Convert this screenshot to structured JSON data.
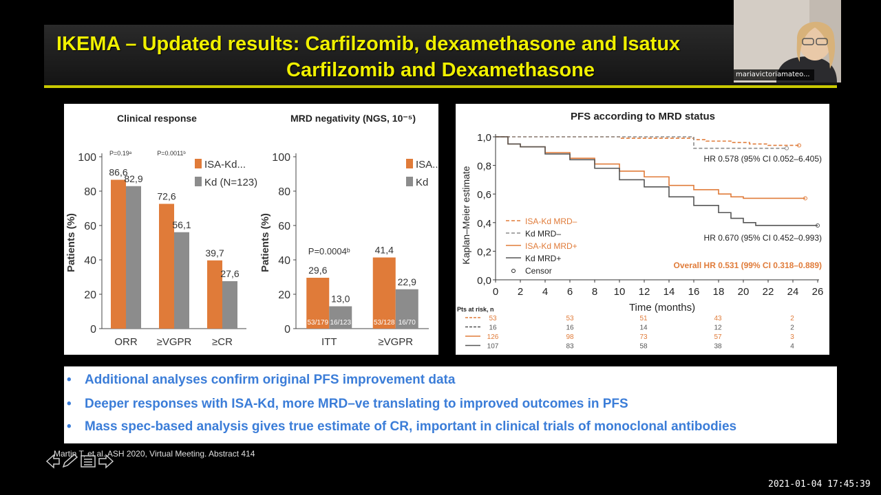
{
  "slide": {
    "title_line1": "IKEMA – Updated results: Carfilzomib, dexamethasone and Isatux",
    "title_line2": "Carfilzomib and Dexamethasone"
  },
  "colors": {
    "isa": "#e07b39",
    "kd": "#8c8c8c",
    "title": "#f0f000",
    "bullet": "#3b7dd8"
  },
  "chart_data": [
    {
      "type": "bar",
      "title": "Clinical response",
      "ylabel": "Patients (%)",
      "ylim": [
        0,
        100
      ],
      "yticks": [
        "0",
        "20",
        "40",
        "60",
        "80",
        "100"
      ],
      "categories": [
        "ORR",
        "≥VGPR",
        "≥CR"
      ],
      "pvalues": [
        "P=0.19ᵃ",
        "P=0.0011ᵇ",
        ""
      ],
      "series": [
        {
          "name": "ISA-Kd...",
          "values": [
            86.6,
            72.6,
            39.7
          ],
          "labels": [
            "86,6",
            "72,6",
            "39,7"
          ]
        },
        {
          "name": "Kd (N=123)",
          "values": [
            82.9,
            56.1,
            27.6
          ],
          "labels": [
            "82,9",
            "56,1",
            "27,6"
          ]
        }
      ]
    },
    {
      "type": "bar",
      "title": "MRD negativity (NGS, 10⁻⁵)",
      "ylabel": "Patients (%)",
      "ylim": [
        0,
        100
      ],
      "yticks": [
        "0",
        "20",
        "40",
        "60",
        "80",
        "100"
      ],
      "categories": [
        "ITT",
        "≥VGPR"
      ],
      "pvalues": [
        "P=0.0004ᵇ",
        ""
      ],
      "series": [
        {
          "name": "ISA...",
          "values": [
            29.6,
            41.4
          ],
          "labels": [
            "29,6",
            "41,4"
          ],
          "inner": [
            "53/179",
            "53/128"
          ]
        },
        {
          "name": "Kd",
          "values": [
            13.0,
            22.9
          ],
          "labels": [
            "13,0",
            "22,9"
          ],
          "inner": [
            "16/123",
            "16/70"
          ]
        }
      ]
    },
    {
      "type": "line",
      "title": "PFS according to MRD status",
      "xlabel": "Time (months)",
      "ylabel": "Kaplan–Meier estimate",
      "xlim": [
        0,
        26
      ],
      "ylim": [
        0,
        1
      ],
      "xticks": [
        "0",
        "2",
        "4",
        "6",
        "8",
        "10",
        "12",
        "14",
        "16",
        "18",
        "20",
        "22",
        "24",
        "26"
      ],
      "yticks": [
        "0,0",
        "0,2",
        "0,4",
        "0,6",
        "0,8",
        "1,0"
      ],
      "series": [
        {
          "name": "ISA-Kd MRD–",
          "style": "dashed",
          "color": "#e07b39",
          "x": [
            0,
            6,
            10,
            14,
            16,
            17,
            19,
            20.5,
            22,
            24.5
          ],
          "y": [
            1.0,
            1.0,
            0.99,
            0.99,
            0.98,
            0.97,
            0.96,
            0.95,
            0.94,
            0.94
          ]
        },
        {
          "name": "Kd MRD–",
          "style": "dashed",
          "color": "#8c8c8c",
          "x": [
            0,
            6,
            12,
            15.5,
            16,
            20,
            21,
            23.5
          ],
          "y": [
            1.0,
            1.0,
            1.0,
            1.0,
            0.92,
            0.92,
            0.92,
            0.92
          ]
        },
        {
          "name": "ISA-Kd MRD+",
          "style": "solid",
          "color": "#e07b39",
          "x": [
            0,
            1,
            2,
            4,
            6,
            8,
            10,
            12,
            14,
            16,
            18,
            19,
            20,
            22,
            25
          ],
          "y": [
            1.0,
            0.95,
            0.93,
            0.89,
            0.85,
            0.81,
            0.76,
            0.72,
            0.66,
            0.63,
            0.6,
            0.58,
            0.57,
            0.57,
            0.57
          ]
        },
        {
          "name": "Kd MRD+",
          "style": "solid",
          "color": "#555555",
          "x": [
            0,
            1,
            2,
            4,
            6,
            8,
            10,
            12,
            14,
            16,
            18,
            19,
            20,
            21,
            22,
            24,
            26
          ],
          "y": [
            1.0,
            0.95,
            0.93,
            0.88,
            0.84,
            0.78,
            0.7,
            0.65,
            0.58,
            0.52,
            0.47,
            0.43,
            0.4,
            0.38,
            0.38,
            0.38,
            0.38
          ]
        }
      ],
      "legend_extra": "Censor",
      "annotations": [
        "HR 0.578 (95% CI 0.052–6.405)",
        "HR 0.670 (95% CI 0.452–0.993)",
        "Overall HR 0.531 (99% CI 0.318–0.889)"
      ],
      "risk_table": {
        "label": "Pts at risk, n",
        "rows": [
          {
            "color": "#e07b39",
            "dashed": true,
            "values": [
              "53",
              "53",
              "51",
              "43",
              "2"
            ]
          },
          {
            "color": "#555555",
            "dashed": true,
            "values": [
              "16",
              "16",
              "14",
              "12",
              "2"
            ]
          },
          {
            "color": "#e07b39",
            "dashed": false,
            "values": [
              "126",
              "98",
              "73",
              "57",
              "3"
            ]
          },
          {
            "color": "#555555",
            "dashed": false,
            "values": [
              "107",
              "83",
              "58",
              "38",
              "4"
            ]
          }
        ]
      }
    }
  ],
  "bullets": [
    "Additional analyses confirm original PFS improvement data",
    "Deeper responses with ISA-Kd, more MRD–ve translating to improved outcomes in PFS",
    "Mass spec-based analysis gives true estimate of CR, important in clinical trials of monoclonal antibodies"
  ],
  "bullet_marker": "•",
  "citation": "Martin T, et al. ASH 2020, Virtual Meeting. Abstract 414",
  "participant": {
    "name": "mariavictoriamateo..."
  },
  "timestamp": "2021-01-04 17:45:39",
  "toolbar_icons": [
    "arrow-left-icon",
    "pen-icon",
    "menu-icon",
    "arrow-right-icon"
  ]
}
